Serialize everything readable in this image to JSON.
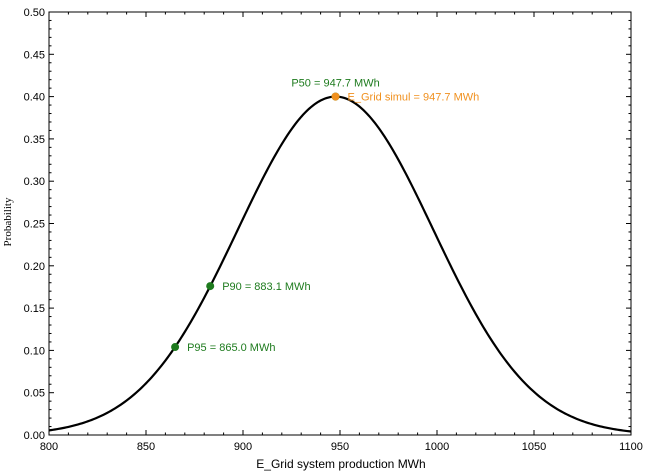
{
  "chart_data": {
    "type": "line",
    "title": "",
    "xlabel": "E_Grid system production MWh",
    "ylabel": "Probability",
    "xlim": [
      800,
      1100
    ],
    "ylim": [
      0,
      0.5
    ],
    "x_ticks": [
      800,
      850,
      900,
      950,
      1000,
      1050,
      1100
    ],
    "x_tick_labels": [
      "800",
      "850",
      "900",
      "950",
      "1000",
      "1050",
      "1100"
    ],
    "y_ticks": [
      0,
      0.05,
      0.1,
      0.15,
      0.2,
      0.25,
      0.3,
      0.35,
      0.4,
      0.45,
      0.5
    ],
    "y_tick_labels": [
      "0.00",
      "0.05",
      "0.10",
      "0.15",
      "0.20",
      "0.25",
      "0.30",
      "0.35",
      "0.40",
      "0.45",
      "0.50"
    ],
    "grid": false,
    "curve": {
      "kind": "normal-distribution",
      "mean": 947.7,
      "peak": 0.4,
      "sigma": 50.4,
      "color": "#000000"
    },
    "points": [
      {
        "x": 947.7,
        "y": 0.4,
        "label": "P50 = 947.7 MWh",
        "label_position": "above",
        "color": "#1e7b1e"
      },
      {
        "x": 947.7,
        "y": 0.4,
        "label": "E_Grid simul = 947.7 MWh",
        "label_position": "right",
        "color": "#f0901e"
      },
      {
        "x": 883.1,
        "y": 0.176,
        "label": "P90 = 883.1 MWh",
        "label_position": "right",
        "color": "#1e7b1e"
      },
      {
        "x": 865.0,
        "y": 0.104,
        "label": "P95 = 865.0 MWh",
        "label_position": "right",
        "color": "#1e7b1e"
      }
    ]
  }
}
